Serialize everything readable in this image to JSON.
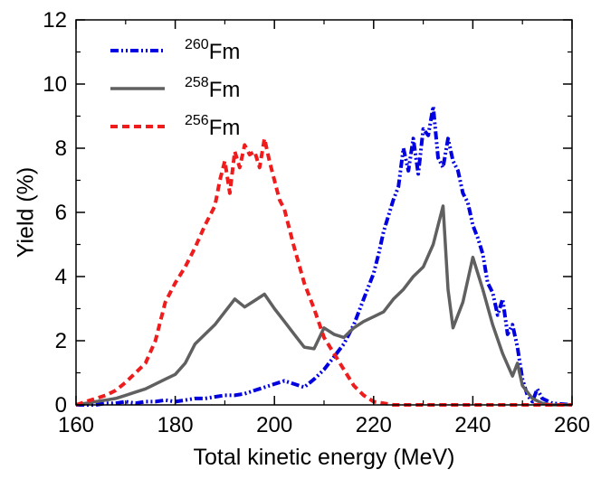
{
  "chart_data": {
    "type": "line",
    "title": "",
    "xlabel": "Total kinetic energy (MeV)",
    "ylabel": "Yield (%)",
    "xlim": [
      160,
      260
    ],
    "ylim": [
      0,
      12
    ],
    "x_ticks": [
      "160",
      "180",
      "200",
      "220",
      "240",
      "260"
    ],
    "y_ticks": [
      "0",
      "2",
      "4",
      "6",
      "8",
      "10",
      "12"
    ],
    "grid": false,
    "legend_position": "top-left",
    "series": [
      {
        "name": "260Fm",
        "mass": "260",
        "element": "Fm",
        "color": "#0000e0",
        "style": "dash-dot-dot",
        "x": [
          160,
          162,
          164,
          166,
          168,
          170,
          172,
          174,
          176,
          178,
          180,
          182,
          184,
          186,
          188,
          190,
          192,
          194,
          196,
          198,
          200,
          202,
          204,
          206,
          208,
          210,
          212,
          214,
          216,
          218,
          219,
          220,
          221,
          222,
          223,
          224,
          225,
          226,
          227,
          228,
          229,
          230,
          231,
          232,
          233,
          234,
          235,
          236,
          237,
          238,
          239,
          240,
          241,
          242,
          243,
          244,
          245,
          246,
          247,
          248,
          249,
          250,
          251,
          252,
          253,
          254,
          256,
          260
        ],
        "y": [
          0,
          0,
          0,
          0.05,
          0.05,
          0.1,
          0.05,
          0.1,
          0.1,
          0.15,
          0.1,
          0.15,
          0.2,
          0.2,
          0.25,
          0.3,
          0.3,
          0.35,
          0.45,
          0.55,
          0.65,
          0.75,
          0.65,
          0.55,
          0.8,
          1.1,
          1.5,
          1.9,
          2.5,
          3.3,
          3.7,
          4.1,
          4.7,
          5.4,
          5.9,
          6.4,
          6.8,
          8.0,
          7.3,
          8.3,
          7.2,
          8.6,
          8.4,
          9.3,
          7.7,
          7.4,
          8.3,
          7.6,
          7.3,
          6.6,
          6.3,
          5.6,
          5.2,
          4.7,
          3.8,
          3.5,
          2.8,
          3.3,
          2.2,
          2.5,
          1.8,
          0.8,
          0.3,
          0.1,
          0.5,
          0.2,
          0.05,
          0
        ]
      },
      {
        "name": "258Fm",
        "mass": "258",
        "element": "Fm",
        "color": "#606060",
        "style": "solid",
        "x": [
          160,
          162,
          164,
          166,
          168,
          170,
          172,
          174,
          176,
          178,
          180,
          182,
          184,
          186,
          188,
          190,
          192,
          194,
          196,
          198,
          200,
          202,
          204,
          206,
          208,
          210,
          212,
          214,
          216,
          218,
          220,
          222,
          224,
          226,
          228,
          230,
          232,
          234,
          235,
          236,
          238,
          240,
          242,
          244,
          246,
          248,
          249,
          250,
          252,
          254,
          256,
          260
        ],
        "y": [
          0,
          0.05,
          0.1,
          0.15,
          0.2,
          0.3,
          0.4,
          0.5,
          0.65,
          0.8,
          0.95,
          1.3,
          1.9,
          2.2,
          2.5,
          2.9,
          3.3,
          3.05,
          3.25,
          3.45,
          3.0,
          2.6,
          2.2,
          1.8,
          1.75,
          2.4,
          2.2,
          2.1,
          2.4,
          2.6,
          2.75,
          2.9,
          3.3,
          3.6,
          4.0,
          4.3,
          5.0,
          6.2,
          3.6,
          2.4,
          3.2,
          4.6,
          3.6,
          2.5,
          1.6,
          0.9,
          1.3,
          0.6,
          0.2,
          0.05,
          0,
          0
        ]
      },
      {
        "name": "256Fm",
        "mass": "256",
        "element": "Fm",
        "color": "#ee1c1c",
        "style": "dashed",
        "x": [
          160,
          162,
          164,
          166,
          168,
          170,
          172,
          174,
          176,
          178,
          180,
          182,
          184,
          186,
          188,
          189,
          190,
          191,
          192,
          193,
          194,
          195,
          196,
          197,
          198,
          199,
          200,
          201,
          202,
          203,
          204,
          206,
          208,
          210,
          212,
          214,
          216,
          218,
          220,
          222,
          224,
          226,
          228,
          230,
          232,
          234,
          236,
          238,
          240,
          242,
          244,
          246,
          248,
          250,
          252,
          254,
          256,
          258,
          260
        ],
        "y": [
          0,
          0.1,
          0.2,
          0.3,
          0.45,
          0.7,
          1.0,
          1.3,
          2.0,
          3.2,
          3.8,
          4.3,
          4.9,
          5.6,
          6.2,
          7.0,
          7.6,
          6.6,
          7.9,
          7.4,
          8.1,
          7.8,
          7.9,
          7.4,
          8.3,
          7.6,
          7.0,
          6.4,
          6.1,
          5.5,
          4.9,
          3.8,
          3.0,
          2.1,
          1.6,
          1.1,
          0.6,
          0.3,
          0.1,
          0.05,
          0,
          0,
          0,
          0,
          0,
          0,
          0,
          0,
          0,
          0,
          0,
          0,
          0,
          0,
          0,
          0,
          0,
          0,
          0
        ]
      }
    ]
  }
}
